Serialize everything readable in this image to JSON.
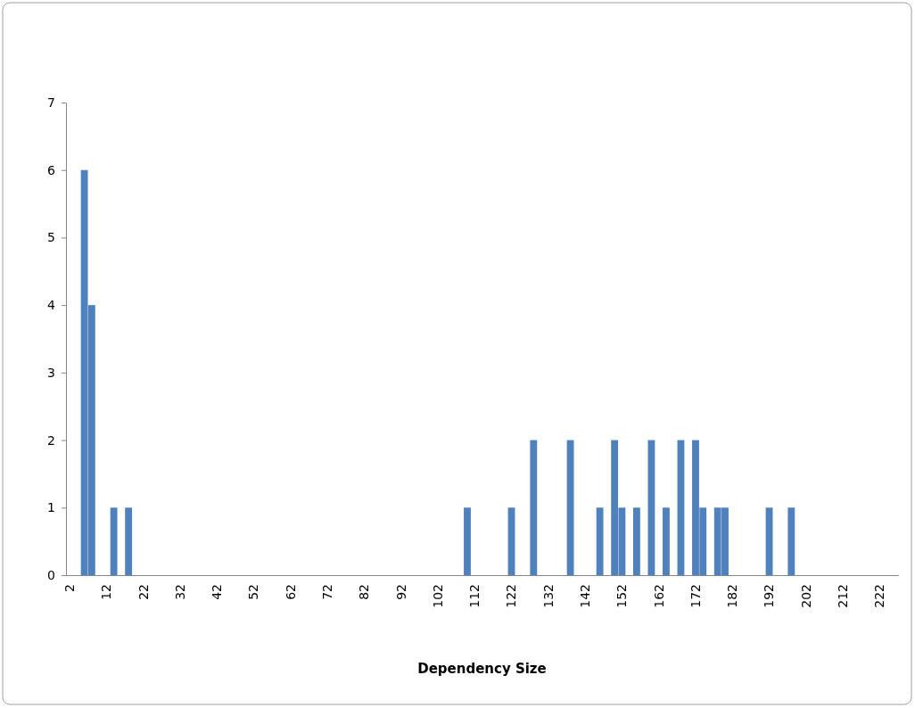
{
  "chart_data": {
    "type": "bar",
    "xlabel": "Dependency Size",
    "color": "#4f81bd",
    "categories": [
      "2",
      null,
      null,
      null,
      null,
      "12",
      null,
      null,
      null,
      null,
      "22",
      null,
      null,
      null,
      null,
      "32",
      null,
      null,
      null,
      null,
      "42",
      null,
      null,
      null,
      null,
      "52",
      null,
      null,
      null,
      null,
      "62",
      null,
      null,
      null,
      null,
      "72",
      null,
      null,
      null,
      null,
      "82",
      null,
      null,
      null,
      null,
      "92",
      null,
      null,
      null,
      null,
      "102",
      null,
      null,
      null,
      null,
      "112",
      null,
      null,
      null,
      null,
      "122",
      null,
      null,
      null,
      null,
      "132",
      null,
      null,
      null,
      null,
      "142",
      null,
      null,
      null,
      null,
      "152",
      null,
      null,
      null,
      null,
      "162",
      null,
      null,
      null,
      null,
      "172",
      null,
      null,
      null,
      null,
      "182",
      null,
      null,
      null,
      null,
      "192",
      null,
      null,
      null,
      null,
      "202",
      null,
      null,
      null,
      null,
      "212",
      null,
      null,
      null,
      null,
      "222",
      null,
      null
    ],
    "values": [
      0,
      0,
      6,
      4,
      0,
      0,
      1,
      0,
      1,
      0,
      0,
      0,
      0,
      0,
      0,
      0,
      0,
      0,
      0,
      0,
      0,
      0,
      0,
      0,
      0,
      0,
      0,
      0,
      0,
      0,
      0,
      0,
      0,
      0,
      0,
      0,
      0,
      0,
      0,
      0,
      0,
      0,
      0,
      0,
      0,
      0,
      0,
      0,
      0,
      0,
      0,
      0,
      0,
      0,
      1,
      0,
      0,
      0,
      0,
      0,
      1,
      0,
      0,
      2,
      0,
      0,
      0,
      0,
      2,
      0,
      0,
      0,
      1,
      0,
      2,
      1,
      0,
      1,
      0,
      2,
      0,
      1,
      0,
      2,
      0,
      2,
      1,
      0,
      1,
      1,
      0,
      0,
      0,
      0,
      0,
      1,
      0,
      0,
      1,
      0,
      0,
      0,
      0,
      0,
      0,
      0,
      0,
      0,
      0,
      0,
      0,
      0,
      0
    ],
    "ylim": [
      0,
      7
    ],
    "yticks": [
      0,
      1,
      2,
      3,
      4,
      5,
      6,
      7
    ]
  }
}
